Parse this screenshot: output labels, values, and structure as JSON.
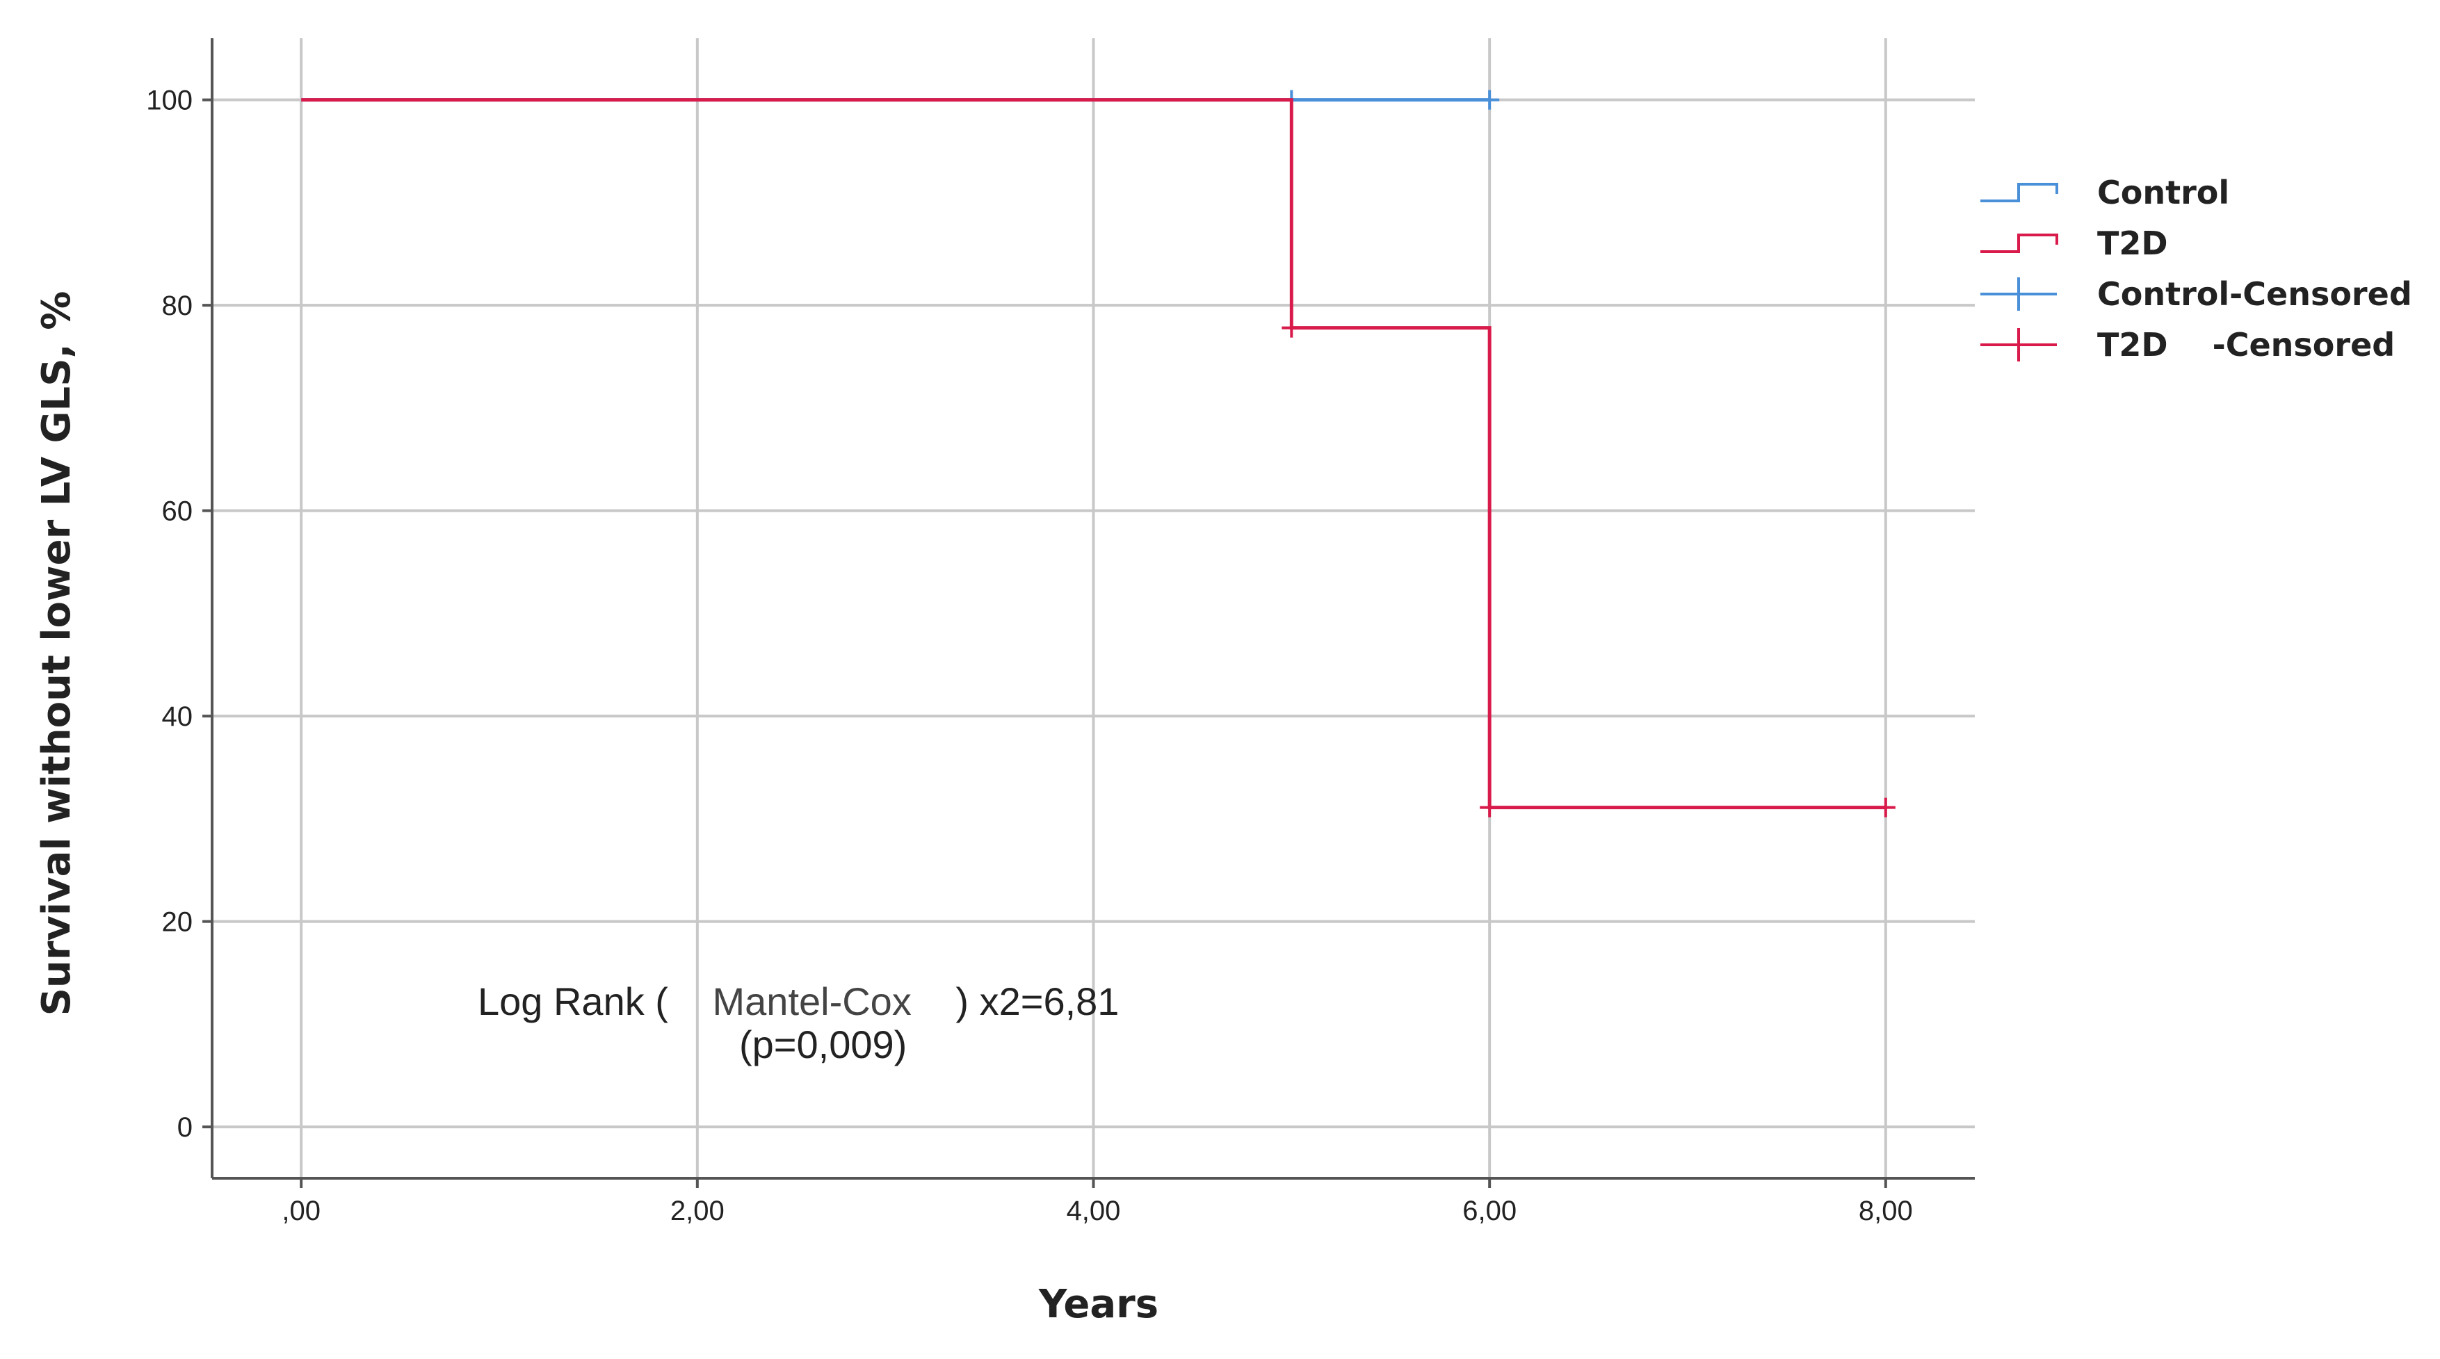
{
  "chart_data": {
    "type": "line",
    "subtype": "kaplan-meier-step",
    "xlabel": "Years",
    "ylabel": "Survival without lower LV GLS, %",
    "xlim": [
      -0.45,
      8.45
    ],
    "ylim": [
      -5,
      106
    ],
    "x_ticks": [
      0,
      2,
      4,
      6,
      8
    ],
    "x_tick_labels": [
      ",00",
      "2,00",
      "4,00",
      "6,00",
      "8,00"
    ],
    "y_ticks": [
      0,
      20,
      40,
      60,
      80,
      100
    ],
    "y_tick_labels": [
      "0",
      "20",
      "40",
      "60",
      "80",
      "100"
    ],
    "grid": true,
    "legend_position": "right",
    "series": [
      {
        "name": "Control",
        "color": "#4a90d9",
        "steps": [
          {
            "x": 0,
            "y": 100
          },
          {
            "x": 6,
            "y": 100
          }
        ],
        "censored": [
          {
            "x": 5,
            "y": 100
          },
          {
            "x": 6,
            "y": 100
          }
        ]
      },
      {
        "name": "T2D",
        "color": "#d81b4a",
        "steps": [
          {
            "x": 0,
            "y": 100
          },
          {
            "x": 5,
            "y": 77.8
          },
          {
            "x": 6,
            "y": 31.1
          },
          {
            "x": 8,
            "y": 31.1
          }
        ],
        "censored": [
          {
            "x": 5,
            "y": 77.8
          },
          {
            "x": 6,
            "y": 31.1
          },
          {
            "x": 8,
            "y": 31.1
          }
        ]
      }
    ],
    "legend": [
      {
        "label": "Control",
        "color": "#4a90d9",
        "kind": "step"
      },
      {
        "label": "T2D",
        "color": "#d81b4a",
        "kind": "step"
      },
      {
        "label": "Control-Censored",
        "color": "#4a90d9",
        "kind": "cross"
      },
      {
        "label": "T2D    -Censored",
        "color": "#d81b4a",
        "kind": "cross"
      }
    ],
    "annotation": {
      "prefix": "Log Rank (",
      "method": "Mantel-Cox",
      "suffix": ") x2=6,81",
      "pvalue": "(p=0,009)"
    }
  }
}
